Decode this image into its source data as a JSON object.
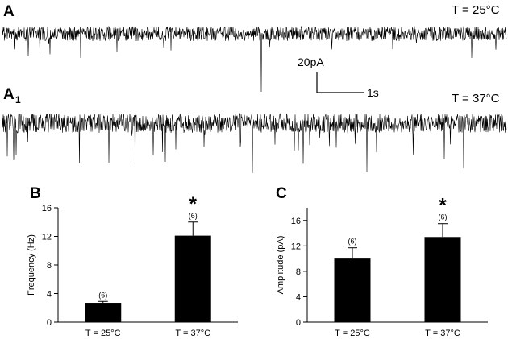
{
  "traces": {
    "top": {
      "label": "A",
      "condition": "T = 25°C"
    },
    "bottom": {
      "label": "A",
      "label_sub": "1",
      "condition": "T = 37°C"
    },
    "scale_bar": {
      "amplitude": "20pA",
      "time": "1s"
    }
  },
  "chart_data": [
    {
      "type": "bar",
      "panel": "B",
      "categories": [
        "T = 25°C",
        "T = 37°C"
      ],
      "values": [
        2.7,
        12.1
      ],
      "errors": [
        0.2,
        1.9
      ],
      "n_labels": [
        "(6)",
        "(6)"
      ],
      "significance": [
        "",
        "*"
      ],
      "ylabel": "Frequency (Hz)",
      "ylim": [
        0,
        16
      ],
      "yticks": [
        0,
        4,
        8,
        12,
        16
      ],
      "bar_color": "#000000"
    },
    {
      "type": "bar",
      "panel": "C",
      "categories": [
        "T = 25°C",
        "T = 37°C"
      ],
      "values": [
        10.0,
        13.4
      ],
      "errors": [
        1.7,
        2.1
      ],
      "n_labels": [
        "(6)",
        "(6)"
      ],
      "significance": [
        "",
        "*"
      ],
      "ylabel": "Amplitude (pA)",
      "ylim": [
        0,
        18
      ],
      "yticks": [
        0,
        4,
        8,
        12,
        16
      ],
      "bar_color": "#000000"
    }
  ]
}
